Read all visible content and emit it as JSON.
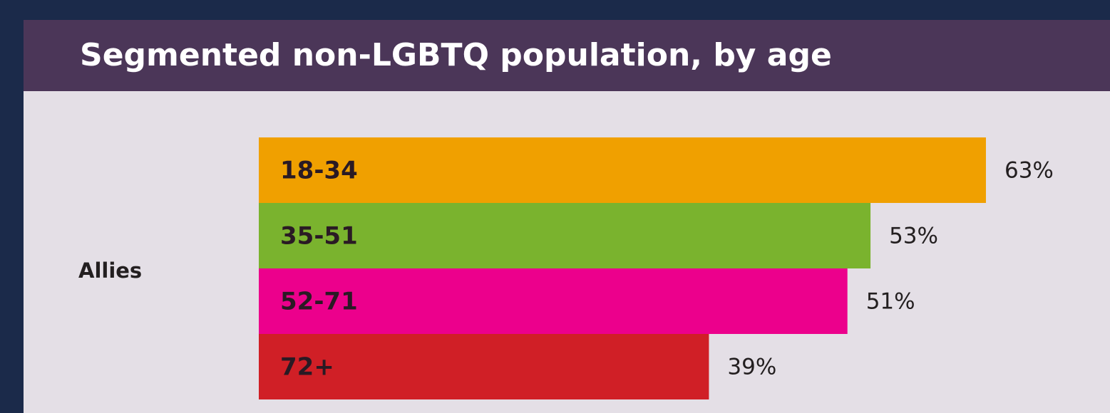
{
  "chart_data": {
    "type": "bar",
    "title": "Segmented non-LGBTQ population, by age",
    "categories": [
      "Allies"
    ],
    "series": [
      {
        "name": "18-34",
        "color": "#f0a000",
        "values": [
          63
        ],
        "value_labels": [
          "63%"
        ]
      },
      {
        "name": "35-51",
        "color": "#7ab32e",
        "values": [
          53
        ],
        "value_labels": [
          "53%"
        ]
      },
      {
        "name": "52-71",
        "color": "#ec008c",
        "values": [
          51
        ],
        "value_labels": [
          "51%"
        ]
      },
      {
        "name": "72+",
        "color": "#d01f26",
        "values": [
          39
        ],
        "value_labels": [
          "39%"
        ]
      }
    ]
  }
}
